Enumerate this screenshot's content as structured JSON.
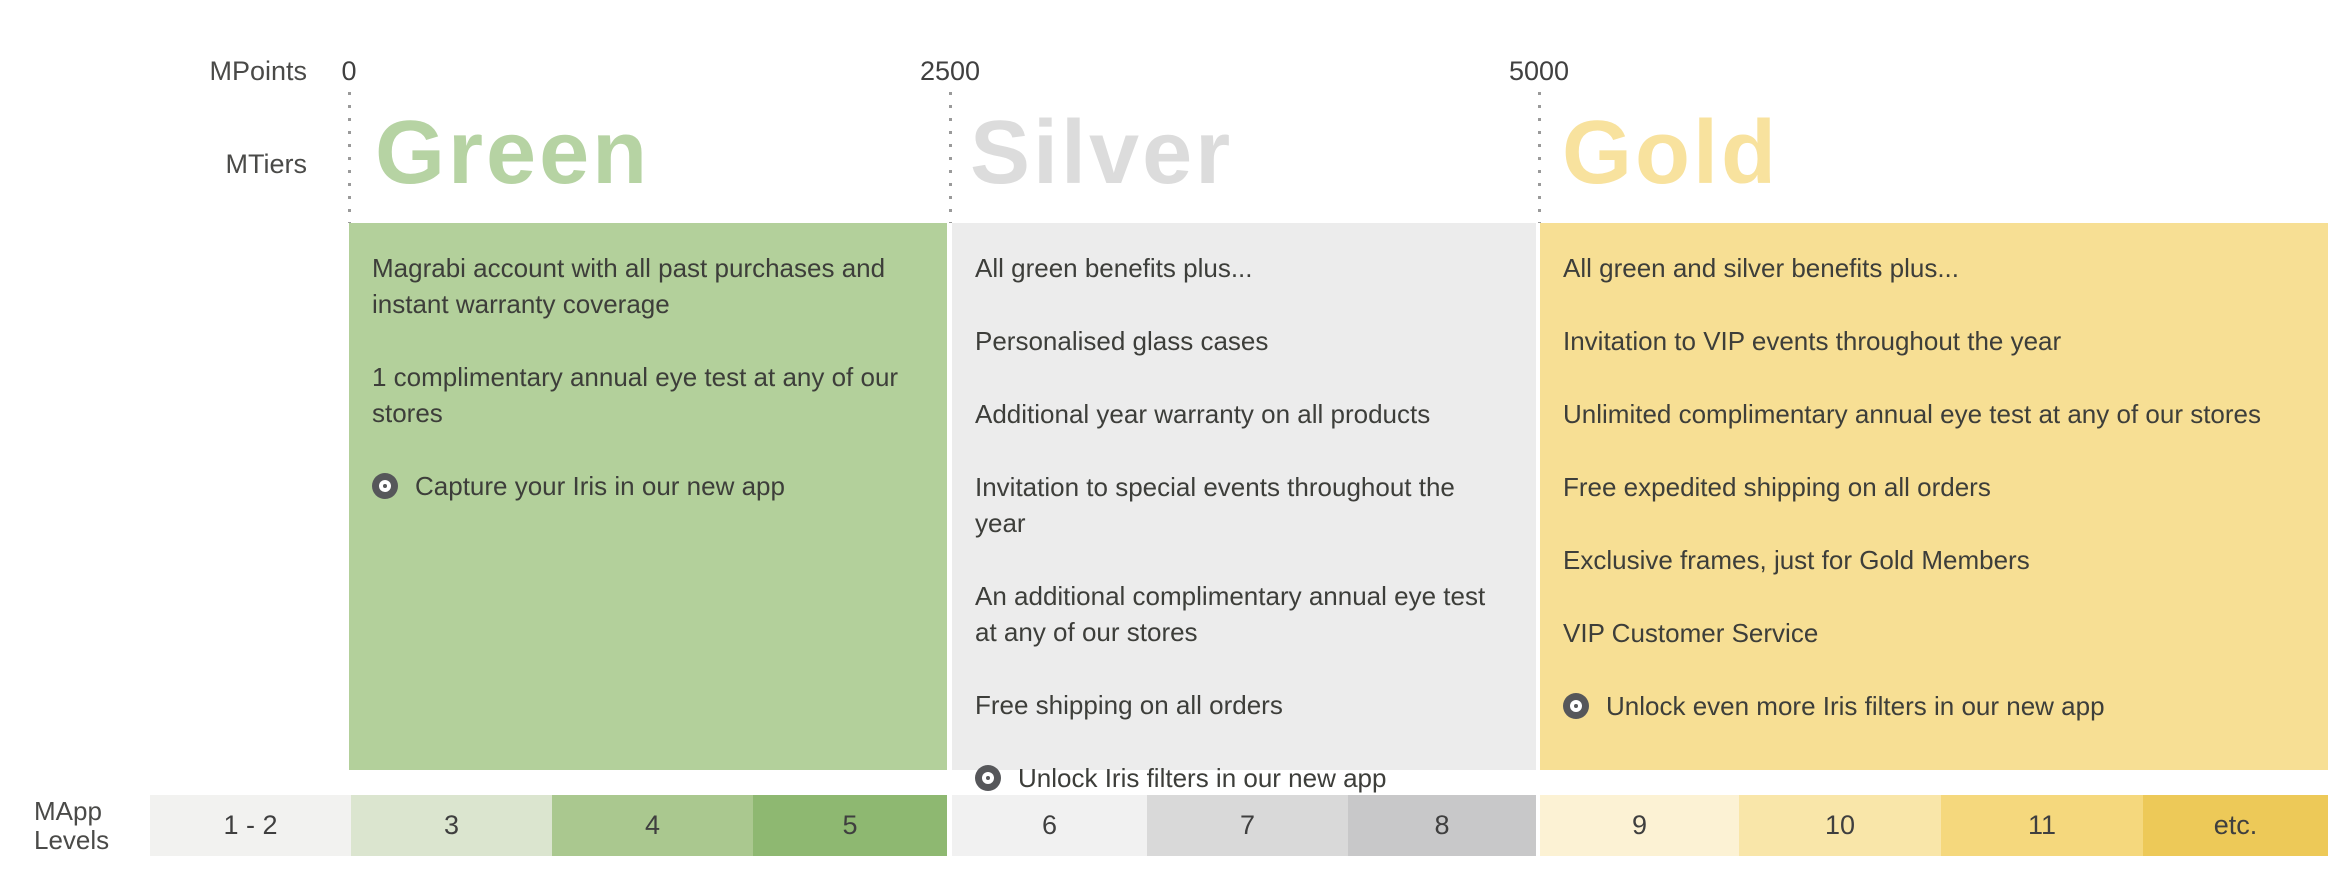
{
  "axis": {
    "points_label": "MPoints",
    "tiers_label": "MTiers",
    "thresholds": [
      "0",
      "2500",
      "5000"
    ],
    "label_color": "#4a4a48",
    "value_color": "#404040",
    "dotted_line_color": "#9a9a9a"
  },
  "tiers": [
    {
      "name": "Green",
      "heading_color": "#b6d3a3",
      "panel_color": "#b3d09b",
      "points_threshold": "0",
      "benefits": [
        "Magrabi account with all past purchases and instant warranty coverage",
        "1 complimentary annual eye test at any of our stores"
      ],
      "app_benefit": "Capture your Iris in our new app"
    },
    {
      "name": "Silver",
      "heading_color": "#dcdcdc",
      "panel_color": "#ececec",
      "points_threshold": "2500",
      "benefits": [
        "All green benefits plus...",
        "Personalised glass cases",
        "Additional year warranty on all products",
        "Invitation to special events throughout the year",
        "An additional complimentary annual eye test at any of our stores",
        "Free shipping on all orders"
      ],
      "app_benefit": "Unlock Iris filters in our new app"
    },
    {
      "name": "Gold",
      "heading_color": "#f8e29e",
      "panel_color": "#f7df94",
      "points_threshold": "5000",
      "benefits": [
        "All green and silver benefits plus...",
        "Invitation to VIP events throughout the year",
        "Unlimited complimentary annual eye test at any of our stores",
        "Free expedited shipping on all orders",
        "Exclusive frames, just for Gold Members",
        "VIP Customer Service"
      ],
      "app_benefit": "Unlock even more Iris filters in our new app"
    }
  ],
  "levels": {
    "label_line1": "MApp",
    "label_line2": "Levels",
    "text_color": "#3f3f3f",
    "cells": [
      {
        "label": "1 - 2",
        "color": "#f2f2f0"
      },
      {
        "label": "3",
        "color": "#dbe5cf"
      },
      {
        "label": "4",
        "color": "#aac88f"
      },
      {
        "label": "5",
        "color": "#8eb871"
      },
      {
        "label": "6",
        "color": "#f1f1f1"
      },
      {
        "label": "7",
        "color": "#d9d9d9"
      },
      {
        "label": "8",
        "color": "#c8c8c9"
      },
      {
        "label": "9",
        "color": "#fcf2d4"
      },
      {
        "label": "10",
        "color": "#f9e6a9"
      },
      {
        "label": "11",
        "color": "#f5d87d"
      },
      {
        "label": "etc.",
        "color": "#edc958"
      }
    ]
  },
  "bullet_icon": {
    "color": "#56575a"
  },
  "body_text_color": "#3d3e3a"
}
